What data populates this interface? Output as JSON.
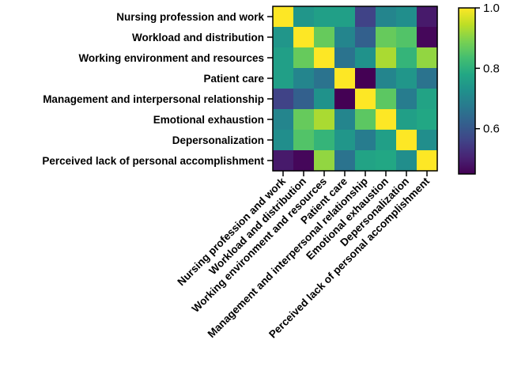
{
  "chart_data": {
    "type": "heatmap",
    "title": "",
    "xlabel": "",
    "ylabel": "",
    "rows": [
      "Nursing profession and work",
      "Workload and distribution",
      "Working environment and resources",
      "Patient care",
      "Management and interpersonal relationship",
      "Emotional exhaustion",
      "Depersonalization",
      "Perceived lack of personal accomplishment"
    ],
    "columns": [
      "Nursing profession and work",
      "Workload and distribution",
      "Working environment and resources",
      "Patient care",
      "Management and interpersonal relationship",
      "Emotional exhaustion",
      "Depersonalization",
      "Perceived lack of personal accomplishment"
    ],
    "values": [
      [
        1.0,
        0.74,
        0.76,
        0.76,
        0.56,
        0.7,
        0.72,
        0.49
      ],
      [
        0.74,
        1.0,
        0.87,
        0.7,
        0.62,
        0.87,
        0.85,
        0.46
      ],
      [
        0.76,
        0.87,
        1.0,
        0.66,
        0.73,
        0.93,
        0.81,
        0.91
      ],
      [
        0.76,
        0.7,
        0.66,
        1.0,
        0.45,
        0.7,
        0.74,
        0.66
      ],
      [
        0.56,
        0.62,
        0.73,
        0.45,
        1.0,
        0.86,
        0.68,
        0.77
      ],
      [
        0.7,
        0.87,
        0.93,
        0.7,
        0.86,
        1.0,
        0.76,
        0.78
      ],
      [
        0.72,
        0.85,
        0.81,
        0.74,
        0.68,
        0.76,
        1.0,
        0.72
      ],
      [
        0.49,
        0.46,
        0.91,
        0.66,
        0.77,
        0.78,
        0.72,
        1.0
      ]
    ],
    "colorscale": "viridis",
    "colorbar": {
      "range": [
        0.45,
        1.0
      ],
      "ticks": [
        {
          "value": 1.0,
          "label": "1.0"
        },
        {
          "value": 0.8,
          "label": "0.8"
        },
        {
          "value": 0.6,
          "label": "0.6"
        }
      ]
    },
    "legend": "colorbar-right",
    "grid": false
  }
}
